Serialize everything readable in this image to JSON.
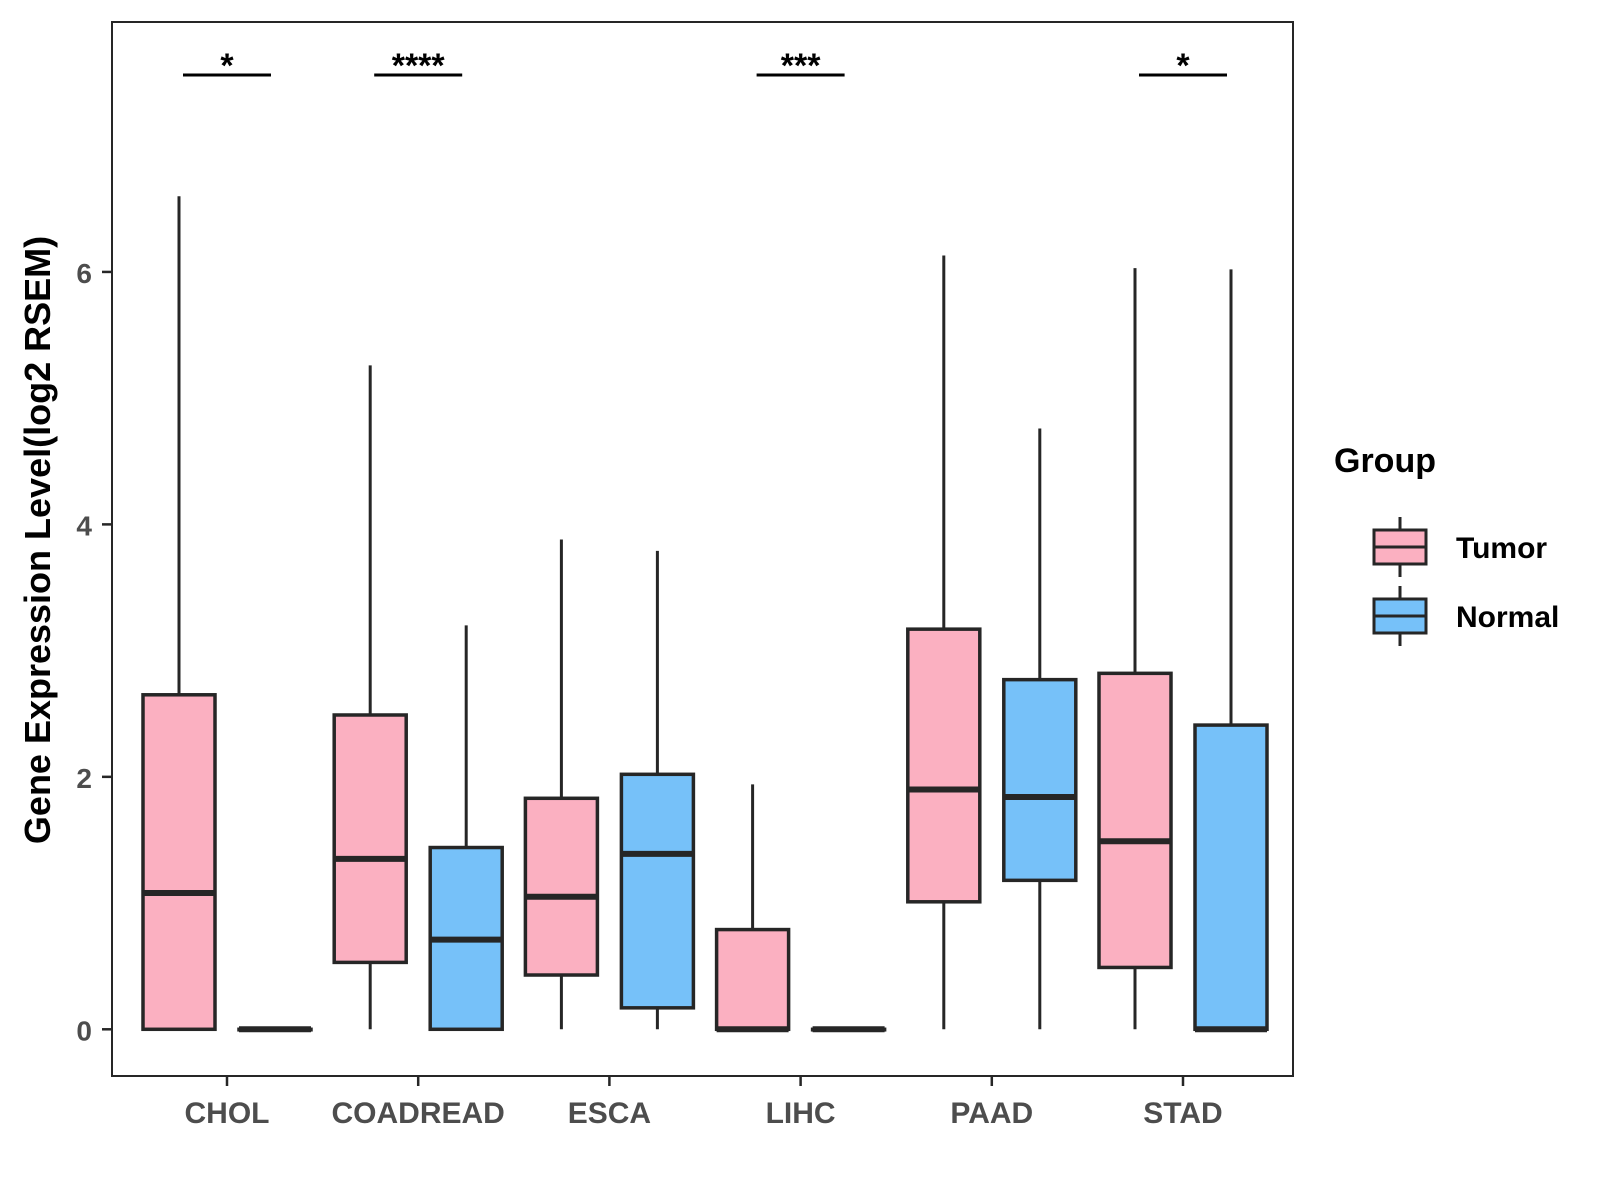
{
  "chart_data": {
    "type": "boxplot",
    "title": "",
    "xlabel": "",
    "ylabel": "Gene Expression Level(log2 RSEM)",
    "ylim": [
      -0.37,
      7.98
    ],
    "yticks": [
      0,
      2,
      4,
      6
    ],
    "grid": false,
    "legend": {
      "title": "Group",
      "position": "right",
      "entries": [
        {
          "name": "Tumor",
          "color": "#FBB0C1"
        },
        {
          "name": "Normal",
          "color": "#76C1F9"
        }
      ]
    },
    "categories": [
      "CHOL",
      "COADREAD",
      "ESCA",
      "LIHC",
      "PAAD",
      "STAD"
    ],
    "series": [
      {
        "name": "Tumor",
        "color": "#FBB0C1",
        "boxes": [
          {
            "min": 0,
            "q1": 0,
            "median": 1.08,
            "q3": 2.65,
            "max": 6.6
          },
          {
            "min": 0,
            "q1": 0.53,
            "median": 1.35,
            "q3": 2.49,
            "max": 5.26
          },
          {
            "min": 0,
            "q1": 0.43,
            "median": 1.05,
            "q3": 1.83,
            "max": 3.88
          },
          {
            "min": 0,
            "q1": 0,
            "median": 0,
            "q3": 0.79,
            "max": 1.94
          },
          {
            "min": 0,
            "q1": 1.01,
            "median": 1.9,
            "q3": 3.17,
            "max": 6.13
          },
          {
            "min": 0,
            "q1": 0.49,
            "median": 1.49,
            "q3": 2.82,
            "max": 6.03
          }
        ]
      },
      {
        "name": "Normal",
        "color": "#76C1F9",
        "boxes": [
          {
            "min": 0,
            "q1": 0,
            "median": 0,
            "q3": 0,
            "max": 0
          },
          {
            "min": 0,
            "q1": 0,
            "median": 0.71,
            "q3": 1.44,
            "max": 3.2
          },
          {
            "min": 0,
            "q1": 0.17,
            "median": 1.39,
            "q3": 2.02,
            "max": 3.79
          },
          {
            "min": 0,
            "q1": 0,
            "median": 0,
            "q3": 0,
            "max": 0
          },
          {
            "min": 0,
            "q1": 1.18,
            "median": 1.84,
            "q3": 2.77,
            "max": 4.76
          },
          {
            "min": 0,
            "q1": 0,
            "median": 0,
            "q3": 2.41,
            "max": 6.02
          }
        ]
      }
    ],
    "significance": [
      {
        "category": "CHOL",
        "label": "*"
      },
      {
        "category": "COADREAD",
        "label": "****"
      },
      {
        "category": "ESCA",
        "label": ""
      },
      {
        "category": "LIHC",
        "label": "***"
      },
      {
        "category": "PAAD",
        "label": ""
      },
      {
        "category": "STAD",
        "label": "*"
      }
    ]
  }
}
